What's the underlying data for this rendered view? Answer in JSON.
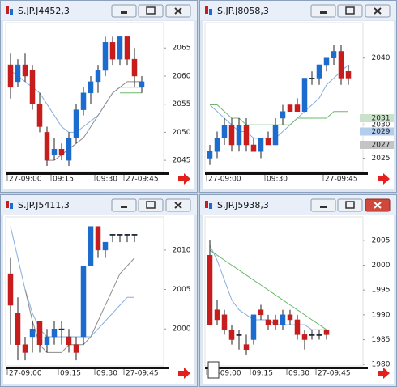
{
  "chart_data": [
    {
      "type": "candlestick",
      "title": "S.JP.J4452,3",
      "active": false,
      "categories": [
        "27-09:00",
        null,
        null,
        null,
        null,
        null,
        "09:15",
        null,
        null,
        null,
        null,
        null,
        "09:30",
        null,
        null,
        null,
        "27-09:45",
        null,
        null
      ],
      "open": [
        2062,
        2059,
        2062,
        2061,
        2055,
        2050,
        2046,
        2047,
        2045,
        2049,
        2054,
        2057,
        2059,
        2061,
        2066,
        2063,
        2067,
        2063,
        2058
      ],
      "high": [
        2064,
        2063,
        2064,
        2062,
        2057,
        2051,
        2049,
        2048,
        2050,
        2055,
        2058,
        2060,
        2062,
        2067,
        2067,
        2067,
        2067,
        2065,
        2060
      ],
      "low": [
        2056,
        2058,
        2059,
        2054,
        2050,
        2044,
        2045,
        2045,
        2044,
        2048,
        2053,
        2055,
        2057,
        2060,
        2062,
        2062,
        2062,
        2058,
        2057
      ],
      "close": [
        2058,
        2062,
        2060,
        2055,
        2051,
        2045,
        2047,
        2046,
        2049,
        2054,
        2057,
        2059,
        2061,
        2066,
        2063,
        2067,
        2063,
        2060,
        2059
      ],
      "up_color": "#1c6cd0",
      "down_color": "#c81d1d",
      "series": [
        {
          "color": "#86aede",
          "values": [
            2061,
            2060,
            2059,
            2058,
            2057,
            2055,
            2053,
            2051,
            2050,
            2050,
            2051,
            2052,
            2053,
            2055,
            2057,
            2058,
            2058,
            2058,
            2058
          ]
        },
        {
          "color": "#8c8c8c",
          "values": [
            null,
            null,
            null,
            null,
            null,
            2045,
            2045,
            2046,
            2047,
            2048,
            2049,
            2051,
            2053,
            2055,
            2057,
            2058,
            2059,
            2059,
            2059
          ]
        },
        {
          "color": "#6db86d",
          "values": [
            null,
            null,
            null,
            null,
            null,
            null,
            null,
            null,
            null,
            null,
            null,
            null,
            null,
            null,
            null,
            2057,
            2057,
            2057,
            2057
          ]
        }
      ],
      "ylim": [
        2043,
        2069.5
      ],
      "yticks": [
        2045,
        2050,
        2055,
        2060,
        2065
      ]
    },
    {
      "type": "candlestick",
      "title": "S.JP.J8058,3",
      "active": false,
      "categories": [
        "27-09:00",
        null,
        null,
        null,
        null,
        null,
        null,
        null,
        "09:30",
        null,
        null,
        null,
        null,
        null,
        null,
        null,
        "27-09:45",
        null,
        null,
        null
      ],
      "open": [
        2025,
        2026,
        2028,
        2030,
        2027,
        2030,
        2027,
        2026,
        2028,
        2027,
        2031,
        2033,
        2033,
        2032,
        2037,
        2037,
        2039,
        2040,
        2041,
        2038
      ],
      "high": [
        2027,
        2029,
        2031,
        2031,
        2031,
        2031,
        2028,
        2028,
        2029,
        2031,
        2033,
        2033,
        2034,
        2037,
        2038,
        2039,
        2040,
        2042,
        2042,
        2039
      ],
      "low": [
        2024,
        2025,
        2027,
        2026,
        2026,
        2026,
        2026,
        2025,
        2027,
        2027,
        2030,
        2032,
        2032,
        2032,
        2036,
        2036,
        2038,
        2039,
        2036,
        2036
      ],
      "close": [
        2026,
        2028,
        2030,
        2027,
        2030,
        2027,
        2026,
        2028,
        2027,
        2030,
        2032,
        2032,
        2032,
        2037,
        2037,
        2039,
        2040,
        2041,
        2037,
        2037
      ],
      "up_color": "#1c6cd0",
      "down_color": "#c81d1d",
      "series": [
        {
          "color": "#86aede",
          "values": [
            2033,
            2032,
            2031,
            2030,
            2029,
            2029,
            2028,
            2028,
            2028,
            2028,
            2029,
            2030,
            2031,
            2032,
            2033,
            2034,
            2036,
            2037,
            2038,
            2039
          ]
        },
        {
          "color": "#6db86d",
          "values": [
            2033,
            2033,
            2032,
            2031,
            2031,
            2030,
            2030,
            2030,
            2030,
            2030,
            2030,
            2030,
            2031,
            2031,
            2031,
            2031,
            2031,
            2032,
            2032,
            2032
          ]
        }
      ],
      "price_tags": [
        {
          "value": 2031,
          "color": "#c9e2c9"
        },
        {
          "value": 2029,
          "color": "#b4cdea"
        },
        {
          "value": 2027,
          "color": "#c4c4c4"
        }
      ],
      "ylim": [
        2023,
        2045.3
      ],
      "yticks": [
        2025,
        2030,
        2040
      ]
    },
    {
      "type": "candlestick",
      "title": "S.JP.J5411,3",
      "active": false,
      "categories": [
        "27-09:00",
        null,
        null,
        null,
        null,
        null,
        null,
        "09:15",
        null,
        null,
        null,
        null,
        "09:30",
        null,
        null,
        null,
        "27-09:45",
        null
      ],
      "open": [
        2007,
        2002,
        1998,
        1999,
        2001,
        1998,
        1999,
        2000,
        1999,
        1998,
        1999,
        2008,
        2013,
        2010,
        2012,
        2012,
        2012,
        2012
      ],
      "high": [
        2009,
        2004,
        1999,
        2001,
        2001,
        2000,
        2001,
        2001,
        2000,
        1999,
        2008,
        2013,
        2013,
        2011,
        2012,
        2012,
        2012,
        2012
      ],
      "low": [
        1998,
        1996,
        1996,
        1997,
        1997,
        1997,
        1998,
        1998,
        1997,
        1996,
        1998,
        2008,
        2009,
        2009,
        2011,
        2011,
        2011,
        2011
      ],
      "close": [
        2003,
        1998,
        1997,
        2000,
        1998,
        1999,
        2000,
        2000,
        1998,
        1997,
        2008,
        2013,
        2010,
        2011,
        2012,
        2012,
        2012,
        2012
      ],
      "up_color": "#1c6cd0",
      "down_color": "#c81d1d",
      "series": [
        {
          "color": "#86aede",
          "values": [
            2013,
            2009,
            2005,
            2002,
            2000,
            1999,
            1999,
            1999,
            1999,
            1999,
            1999,
            1999,
            2000,
            2001,
            2002,
            2003,
            2004,
            2004
          ]
        },
        {
          "color": "#8c8c8c",
          "values": [
            null,
            null,
            2005,
            2001,
            1998,
            1997,
            1997,
            1997,
            1998,
            1998,
            1998,
            1999,
            2001,
            2003,
            2005,
            2007,
            2008,
            2009
          ]
        }
      ],
      "ylim": [
        1995.3,
        2014.2
      ],
      "yticks": [
        2000,
        2005,
        2010
      ]
    },
    {
      "type": "candlestick",
      "title": "S.JP.J5938,3",
      "active": true,
      "categories": [
        "27-09:00",
        null,
        null,
        null,
        null,
        null,
        "09:15",
        null,
        null,
        null,
        null,
        "09:30",
        null,
        null,
        null,
        "27-09:45",
        null
      ],
      "open": [
        2002,
        1991,
        1990,
        1987,
        1986,
        1984,
        1985,
        1991,
        1989,
        1989,
        1988,
        1990,
        1989,
        1986,
        1986,
        1986,
        1987
      ],
      "high": [
        2005,
        1993,
        1991,
        1988,
        1987,
        1986,
        1990,
        1992,
        1990,
        1990,
        1991,
        1991,
        1990,
        1987,
        1987,
        1987,
        1987
      ],
      "low": [
        1988,
        1988,
        1986,
        1984,
        1983,
        1982,
        1984,
        1989,
        1987,
        1987,
        1987,
        1988,
        1985,
        1983,
        1985,
        1985,
        1985
      ],
      "close": [
        1988,
        1989,
        1987,
        1985,
        1986,
        1983,
        1990,
        1990,
        1988,
        1988,
        1990,
        1989,
        1986,
        1985,
        1986,
        1986,
        1986
      ],
      "up_color": "#1c6cd0",
      "down_color": "#c81d1d",
      "series": [
        {
          "color": "#86aede",
          "values": [
            2004,
            2001,
            1997,
            1993,
            1991,
            1990,
            1989,
            1989,
            1989,
            1988,
            1988,
            1988,
            1988,
            1988,
            1987,
            1987,
            1987
          ]
        },
        {
          "color": "#6db86d",
          "values": [
            2003,
            2002,
            2001,
            2000,
            1999,
            1998,
            1997,
            1996,
            1995,
            1994,
            1993,
            1992,
            1991,
            1990,
            1989,
            1988,
            1987
          ]
        }
      ],
      "ylim": [
        1979.7,
        2009.7
      ],
      "yticks": [
        1980,
        1985,
        1990,
        1995,
        2000,
        2005
      ]
    }
  ]
}
